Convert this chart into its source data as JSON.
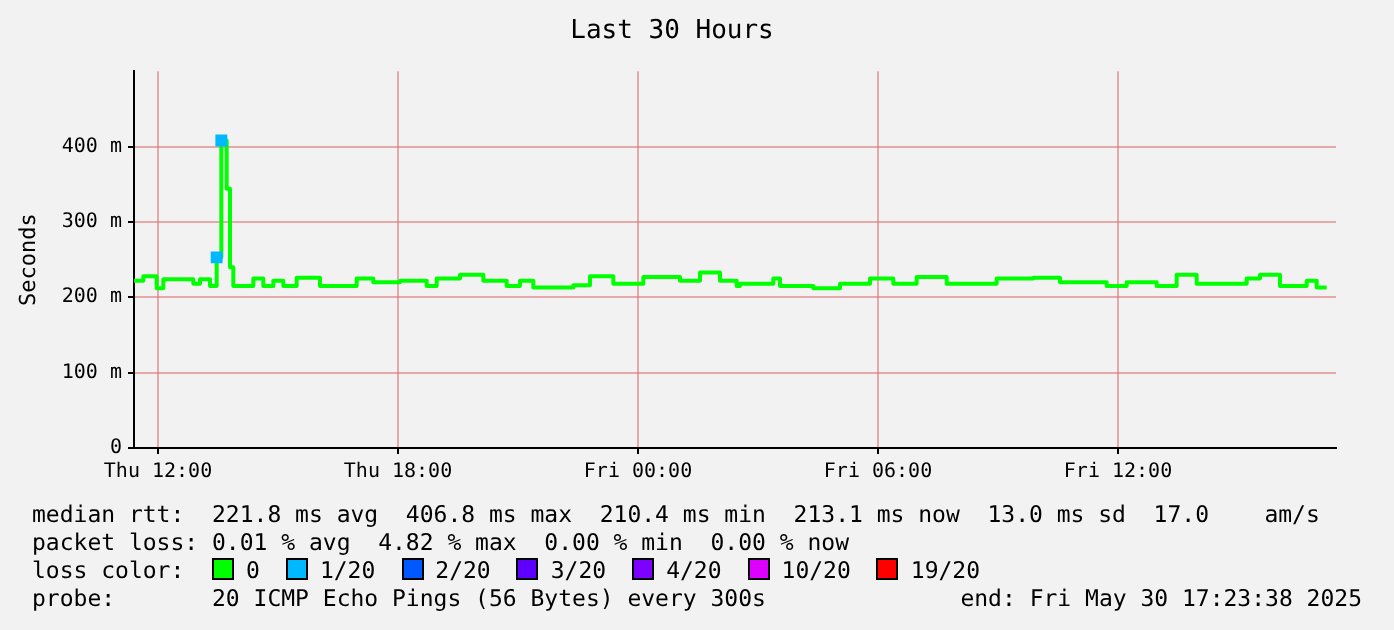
{
  "chart_data": {
    "type": "step",
    "title": "Last 30 Hours",
    "ylabel": "Seconds",
    "legend_title": "loss color:",
    "legend": "bottom",
    "grid": true,
    "xlim": [
      "2025-05-29T11:24",
      "2025-05-30T17:27"
    ],
    "xticks": [
      {
        "value": "2025-05-29T12:00",
        "label": "Thu 12:00"
      },
      {
        "value": "2025-05-29T18:00",
        "label": "Thu 18:00"
      },
      {
        "value": "2025-05-30T00:00",
        "label": "Fri 00:00"
      },
      {
        "value": "2025-05-30T06:00",
        "label": "Fri 06:00"
      },
      {
        "value": "2025-05-30T12:00",
        "label": "Fri 12:00"
      }
    ],
    "ylim": [
      0,
      500
    ],
    "yticks": [
      0,
      {
        "value": 100,
        "label": "100 m"
      },
      {
        "value": 200,
        "label": "200 m"
      },
      {
        "value": 300,
        "label": "300 m"
      },
      {
        "value": 400,
        "label": "400 m"
      }
    ],
    "series": [
      {
        "name": "0",
        "color": "#00ff00",
        "marker": "none",
        "x": [
          "2025-05-29T11:24",
          "2025-05-29T11:38",
          "2025-05-29T11:58",
          "2025-05-29T12:08",
          "2025-05-29T12:53",
          "2025-05-29T13:03",
          "2025-05-29T13:18",
          "2025-05-29T13:28",
          "2025-05-29T13:35",
          "2025-05-29T13:43",
          "2025-05-29T13:48",
          "2025-05-29T13:53",
          "2025-05-29T14:23",
          "2025-05-29T14:38",
          "2025-05-29T14:53",
          "2025-05-29T15:08",
          "2025-05-29T15:28",
          "2025-05-29T16:03",
          "2025-05-29T16:58",
          "2025-05-29T17:23",
          "2025-05-29T18:03",
          "2025-05-29T18:43",
          "2025-05-29T18:58",
          "2025-05-29T19:33",
          "2025-05-29T20:08",
          "2025-05-29T20:43",
          "2025-05-29T21:03",
          "2025-05-29T21:23",
          "2025-05-29T22:23",
          "2025-05-29T22:48",
          "2025-05-29T23:23",
          "2025-05-30T00:08",
          "2025-05-30T01:03",
          "2025-05-30T01:33",
          "2025-05-30T02:03",
          "2025-05-30T02:28",
          "2025-05-30T02:33",
          "2025-05-30T03:23",
          "2025-05-30T03:33",
          "2025-05-30T04:23",
          "2025-05-30T05:03",
          "2025-05-30T05:48",
          "2025-05-30T06:23",
          "2025-05-30T06:58",
          "2025-05-30T07:43",
          "2025-05-30T08:58",
          "2025-05-30T09:53",
          "2025-05-30T10:33",
          "2025-05-30T11:43",
          "2025-05-30T12:13",
          "2025-05-30T12:58",
          "2025-05-30T13:28",
          "2025-05-30T13:58",
          "2025-05-30T15:13",
          "2025-05-30T15:33",
          "2025-05-30T16:03",
          "2025-05-30T16:43",
          "2025-05-30T16:58",
          "2025-05-30T17:13"
        ],
        "values": [
          222,
          228,
          212,
          224,
          218,
          224,
          215,
          253,
          408,
          344,
          240,
          215,
          225,
          215,
          222,
          215,
          226,
          215,
          225,
          220,
          222,
          215,
          225,
          230,
          222,
          215,
          222,
          213,
          216,
          228,
          218,
          227,
          222,
          233,
          222,
          215,
          218,
          225,
          215,
          212,
          218,
          225,
          218,
          227,
          218,
          225,
          226,
          220,
          215,
          220,
          215,
          230,
          218,
          225,
          230,
          215,
          222,
          213,
          213
        ]
      },
      {
        "name": "1/20",
        "color": "#00b8ff",
        "type": "scatter",
        "marker": "square",
        "x": [
          "2025-05-29T13:28",
          "2025-05-29T13:35"
        ],
        "values": [
          253,
          408
        ]
      },
      {
        "name": "2/20",
        "color": "#0059ff"
      },
      {
        "name": "3/20",
        "color": "#5e00ff"
      },
      {
        "name": "4/20",
        "color": "#7e00ff"
      },
      {
        "name": "10/20",
        "color": "#dd00ff"
      },
      {
        "name": "19/20",
        "color": "#ff0000"
      }
    ],
    "annotations": [
      "median rtt:  221.8 ms avg  406.8 ms max  210.4 ms min  213.1 ms now  13.0 ms sd  17.0    am/s",
      "packet loss: 0.01 % avg  4.82 % max  0.00 % min  0.00 % now",
      "probe:       20 ICMP Echo Pings (56 Bytes) every 300s",
      "end: Fri May 30 17:23:38 2025"
    ]
  }
}
